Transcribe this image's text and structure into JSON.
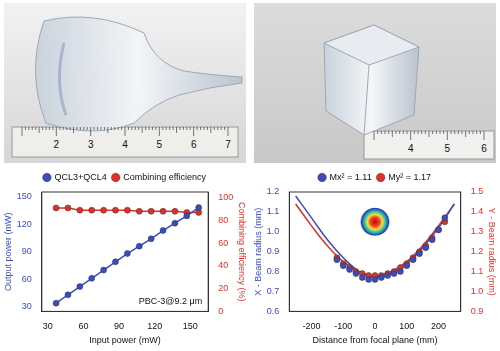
{
  "photos": [
    {
      "ruler_labels": [
        "2",
        "3",
        "4",
        "5",
        "6",
        "7"
      ]
    },
    {
      "ruler_labels": [
        "4",
        "5",
        "6"
      ]
    }
  ],
  "chart_data": [
    {
      "type": "line",
      "x_label": "Input power (mW)",
      "y_label": "Output power (mW)",
      "y2_label": "Combining efficiency (%)",
      "annotation": "PBC-3@9.2 μm",
      "xlim": [
        25,
        165
      ],
      "xticks": [
        30,
        60,
        90,
        120,
        150
      ],
      "ylim": [
        25,
        155
      ],
      "yticks": [
        30,
        60,
        90,
        120,
        150
      ],
      "y2lim": [
        0,
        105
      ],
      "y2ticks": [
        0,
        20,
        40,
        60,
        80,
        100
      ],
      "grid": false,
      "legend": "top",
      "marker": "circle",
      "x": [
        37,
        47,
        57,
        67,
        77,
        87,
        97,
        107,
        117,
        127,
        137,
        147,
        157
      ],
      "series": [
        {
          "name": "QCL3+QCL4",
          "color": "#3b4cc0",
          "values": [
            34,
            43,
            52,
            61,
            70,
            79,
            88,
            96,
            104,
            113,
            121,
            129,
            138
          ]
        },
        {
          "name": "Combining efficiency",
          "color": "#e0302a",
          "axis": "y2",
          "values": [
            91,
            91,
            89,
            89,
            89,
            89,
            89,
            88,
            88,
            88,
            88,
            87,
            87
          ]
        }
      ]
    },
    {
      "type": "scatter",
      "x_label": "Distance from focal plane (mm)",
      "y_label": "X - Beam radius (mm)",
      "y2_label": "Y - Beam radius (mm)",
      "xlim": [
        -270,
        270
      ],
      "xticks": [
        -200,
        -100,
        0,
        100,
        200
      ],
      "ylim": [
        0.6,
        1.2
      ],
      "yticks": [
        0.6,
        0.7,
        0.8,
        0.9,
        {
          "value": 1,
          "label": "1.0"
        },
        1.1,
        1.2
      ],
      "y2lim": [
        0.9,
        1.5
      ],
      "y2ticks": [
        0.9,
        {
          "value": 1,
          "label": "1.0"
        },
        1.1,
        1.2,
        1.3,
        1.4,
        1.5
      ],
      "grid": false,
      "legend": "top",
      "marker": "circle",
      "series": [
        {
          "name": "Mx² = 1.11",
          "color": "#3b4cc0",
          "x": [
            -120,
            -100,
            -80,
            -60,
            -40,
            -20,
            0,
            20,
            40,
            60,
            80,
            100,
            120,
            140,
            160,
            180,
            200,
            220
          ],
          "values": [
            0.86,
            0.83,
            0.81,
            0.79,
            0.77,
            0.76,
            0.76,
            0.77,
            0.78,
            0.79,
            0.8,
            0.83,
            0.86,
            0.89,
            0.92,
            0.96,
            1.01,
            1.07
          ]
        },
        {
          "name": "My² = 1.17",
          "color": "#e0302a",
          "axis": "y2",
          "x": [
            -120,
            -100,
            -80,
            -60,
            -40,
            -20,
            0,
            20,
            40,
            60,
            80,
            100,
            120,
            140,
            160,
            180,
            200,
            220
          ],
          "values": [
            1.17,
            1.14,
            1.12,
            1.1,
            1.09,
            1.08,
            1.08,
            1.08,
            1.09,
            1.1,
            1.12,
            1.14,
            1.17,
            1.2,
            1.23,
            1.27,
            1.31,
            1.35
          ]
        },
        {
          "type": "line",
          "color": "#3b4cc0",
          "x": [
            -250,
            -200,
            -150,
            -100,
            -50,
            0,
            50,
            100,
            150,
            200,
            250
          ],
          "values": [
            1.18,
            1.07,
            0.96,
            0.87,
            0.8,
            0.77,
            0.79,
            0.84,
            0.92,
            1.02,
            1.14
          ]
        },
        {
          "type": "line",
          "color": "#e0302a",
          "axis": "y2",
          "x": [
            -250,
            -200,
            -150,
            -100,
            -50,
            0,
            50,
            100,
            150,
            200,
            250
          ],
          "values": [
            1.44,
            1.33,
            1.23,
            1.15,
            1.1,
            1.08,
            1.1,
            1.15,
            1.23,
            1.33,
            1.44
          ]
        }
      ]
    }
  ]
}
